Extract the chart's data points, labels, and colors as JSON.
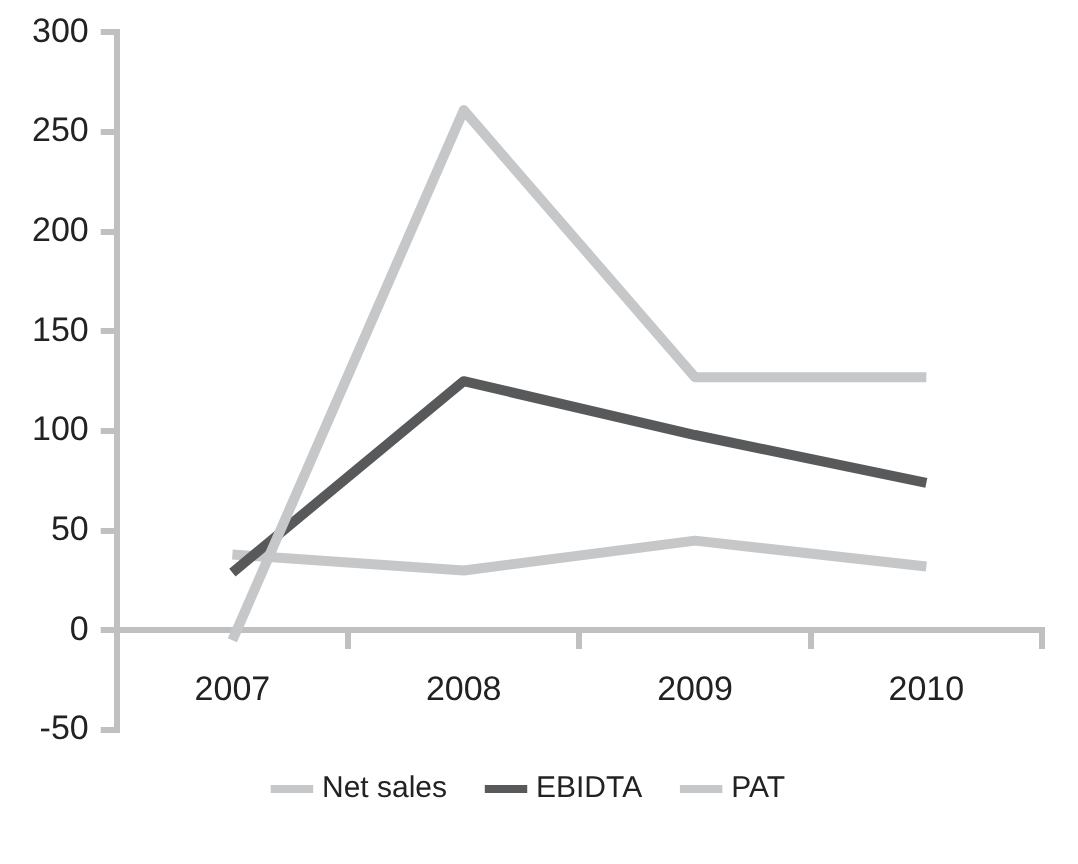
{
  "chart_data": {
    "type": "line",
    "categories": [
      "2007",
      "2008",
      "2009",
      "2010"
    ],
    "series": [
      {
        "name": "Net sales",
        "color": "#c6c7c9",
        "values": [
          -5,
          261,
          127,
          127
        ]
      },
      {
        "name": "EBIDTA",
        "color": "#58595b",
        "values": [
          29,
          125,
          98,
          74
        ]
      },
      {
        "name": "PAT",
        "color": "#c6c7c9",
        "values": [
          38,
          30,
          45,
          32
        ]
      }
    ],
    "ylim": [
      -50,
      300
    ],
    "yticks": [
      -50,
      0,
      50,
      100,
      150,
      200,
      250,
      300
    ],
    "grid": false,
    "legend": "bottom",
    "marker": "none",
    "line_style": "solid"
  }
}
